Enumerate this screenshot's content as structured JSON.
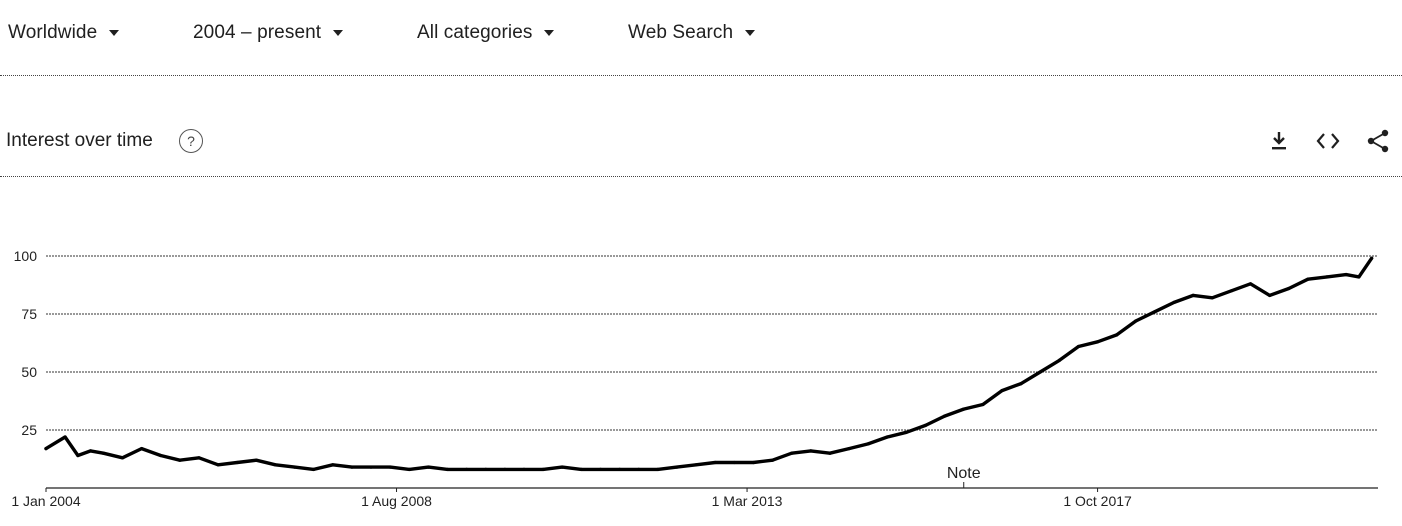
{
  "filters": {
    "region": "Worldwide",
    "time_range": "2004 – present",
    "category": "All categories",
    "search_type": "Web Search"
  },
  "section": {
    "title": "Interest over time",
    "help_glyph": "?"
  },
  "toolbar": {
    "icons": [
      "download-icon",
      "embed-icon",
      "share-icon"
    ]
  },
  "chart_data": {
    "type": "line",
    "title": "Interest over time",
    "xlabel": "",
    "ylabel": "",
    "ylim": [
      0,
      100
    ],
    "xlim": [
      "2004-01",
      "2021-06"
    ],
    "yticks": [
      25,
      50,
      75,
      100
    ],
    "xticks": [
      {
        "value": "2004-01",
        "label": "1 Jan 2004"
      },
      {
        "value": "2008-08",
        "label": "1 Aug 2008"
      },
      {
        "value": "2013-03",
        "label": "1 Mar 2013"
      },
      {
        "value": "2017-10",
        "label": "1 Oct 2017"
      }
    ],
    "annotations": [
      {
        "x": "2016-01",
        "label": "Note"
      }
    ],
    "grid": true,
    "line_color": "#000000",
    "series": [
      {
        "x": [
          "2004-01",
          "2004-04",
          "2004-06",
          "2004-08",
          "2004-10",
          "2005-01",
          "2005-04",
          "2005-07",
          "2005-10",
          "2006-01",
          "2006-04",
          "2006-07",
          "2006-10",
          "2007-01",
          "2007-04",
          "2007-07",
          "2007-10",
          "2008-01",
          "2008-04",
          "2008-07",
          "2008-10",
          "2009-01",
          "2009-04",
          "2009-07",
          "2009-10",
          "2010-01",
          "2010-04",
          "2010-07",
          "2010-10",
          "2011-01",
          "2011-04",
          "2011-07",
          "2011-10",
          "2012-01",
          "2012-04",
          "2012-07",
          "2012-10",
          "2013-01",
          "2013-04",
          "2013-07",
          "2013-10",
          "2014-01",
          "2014-04",
          "2014-07",
          "2014-10",
          "2015-01",
          "2015-04",
          "2015-07",
          "2015-10",
          "2016-01",
          "2016-04",
          "2016-07",
          "2016-10",
          "2017-01",
          "2017-04",
          "2017-07",
          "2017-10",
          "2018-01",
          "2018-04",
          "2018-07",
          "2018-10",
          "2019-01",
          "2019-04",
          "2019-07",
          "2019-10",
          "2020-01",
          "2020-04",
          "2020-07",
          "2020-10",
          "2021-01",
          "2021-03",
          "2021-05"
        ],
        "values": [
          17,
          22,
          14,
          16,
          15,
          13,
          17,
          14,
          12,
          13,
          10,
          11,
          12,
          10,
          9,
          8,
          10,
          9,
          9,
          9,
          8,
          9,
          8,
          8,
          8,
          8,
          8,
          8,
          9,
          8,
          8,
          8,
          8,
          8,
          9,
          10,
          11,
          11,
          11,
          12,
          15,
          16,
          15,
          17,
          19,
          22,
          24,
          27,
          31,
          34,
          36,
          42,
          45,
          50,
          55,
          61,
          63,
          66,
          72,
          76,
          80,
          83,
          82,
          85,
          88,
          83,
          86,
          90,
          91,
          92,
          91,
          99
        ]
      }
    ]
  }
}
